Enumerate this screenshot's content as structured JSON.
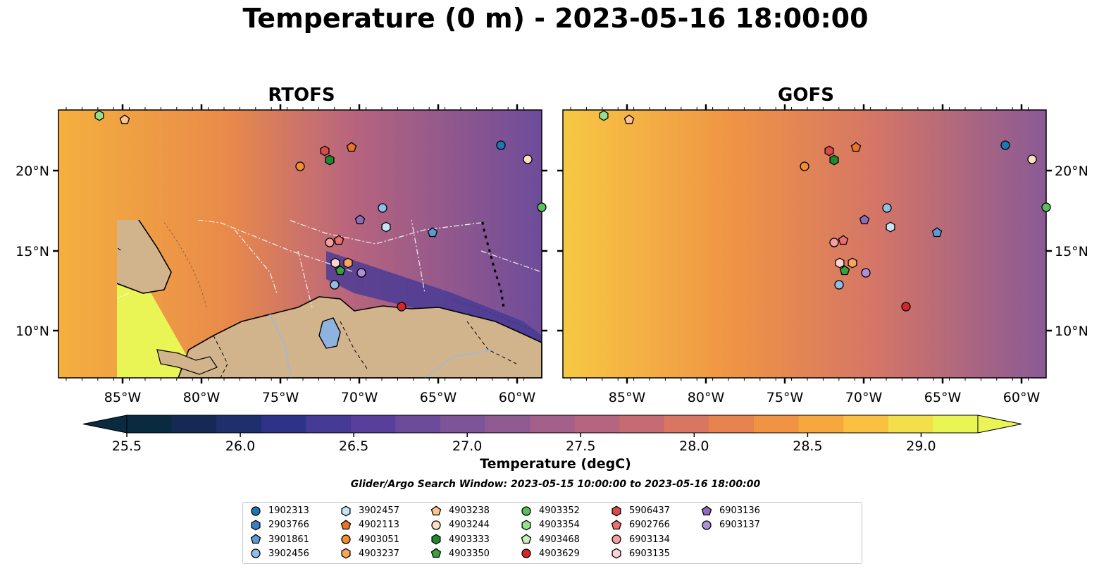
{
  "title": "Temperature (0 m) - 2023-05-16 18:00:00",
  "panels": [
    {
      "id": "rtofs",
      "title": "RTOFS"
    },
    {
      "id": "gofs",
      "title": "GOFS"
    }
  ],
  "axes": {
    "lon_ticks": [
      "85°W",
      "80°W",
      "75°W",
      "70°W",
      "65°W",
      "60°W"
    ],
    "lat_ticks": [
      "20°N",
      "15°N",
      "10°N"
    ]
  },
  "colorbar": {
    "label": "Temperature (degC)",
    "ticks": [
      "25.5",
      "26.0",
      "26.5",
      "27.0",
      "27.5",
      "28.0",
      "28.5",
      "29.0"
    ],
    "range": [
      25.5,
      29.25
    ],
    "extend": "both",
    "colors": [
      "#0a2a40",
      "#142a54",
      "#1e2f6e",
      "#2e3288",
      "#453a96",
      "#593f9c",
      "#6b4b9a",
      "#7d5498",
      "#8f5b92",
      "#a2608a",
      "#b5657f",
      "#c76b72",
      "#d97662",
      "#e6834f",
      "#f09443",
      "#f6a83e",
      "#f9c042",
      "#f3de4c",
      "#e9f554"
    ]
  },
  "search_window": "Glider/Argo Search Window: 2023-05-15 10:00:00 to 2023-05-16 18:00:00",
  "legend": [
    {
      "id": "1902313",
      "marker": "circle",
      "color": "#1f77b4"
    },
    {
      "id": "2903766",
      "marker": "hexagon",
      "color": "#3a7fc1"
    },
    {
      "id": "3901861",
      "marker": "pentagon",
      "color": "#5a9bd5"
    },
    {
      "id": "3902456",
      "marker": "circle",
      "color": "#8fbfe8"
    },
    {
      "id": "3902457",
      "marker": "hexagon",
      "color": "#c6e2f7"
    },
    {
      "id": "4902113",
      "marker": "pentagon",
      "color": "#e8742a"
    },
    {
      "id": "4903051",
      "marker": "circle",
      "color": "#f28e2b"
    },
    {
      "id": "4903237",
      "marker": "hexagon",
      "color": "#f9a65a"
    },
    {
      "id": "4903238",
      "marker": "pentagon",
      "color": "#fcc590"
    },
    {
      "id": "4903244",
      "marker": "circle",
      "color": "#fde0c5"
    },
    {
      "id": "4903333",
      "marker": "hexagon",
      "color": "#1e8a2e"
    },
    {
      "id": "4903350",
      "marker": "pentagon",
      "color": "#3aa03a"
    },
    {
      "id": "4903352",
      "marker": "circle",
      "color": "#5cbf5c"
    },
    {
      "id": "4903354",
      "marker": "hexagon",
      "color": "#98df8a"
    },
    {
      "id": "4903468",
      "marker": "pentagon",
      "color": "#c9f0c0"
    },
    {
      "id": "4903629",
      "marker": "circle",
      "color": "#d62728"
    },
    {
      "id": "5906437",
      "marker": "hexagon",
      "color": "#d94a4a"
    },
    {
      "id": "6902766",
      "marker": "pentagon",
      "color": "#ec7070"
    },
    {
      "id": "6903134",
      "marker": "circle",
      "color": "#f4a0a0"
    },
    {
      "id": "6903135",
      "marker": "hexagon",
      "color": "#fbd3d3"
    },
    {
      "id": "6903136",
      "marker": "pentagon",
      "color": "#8e6bbf"
    },
    {
      "id": "6903137",
      "marker": "circle",
      "color": "#b08fd8"
    }
  ],
  "map_colors": {
    "land": "#d2b48c",
    "lake": "#8fb3e0",
    "river": "#9fb8d6",
    "deep_blue": "#2b2f8a"
  }
}
